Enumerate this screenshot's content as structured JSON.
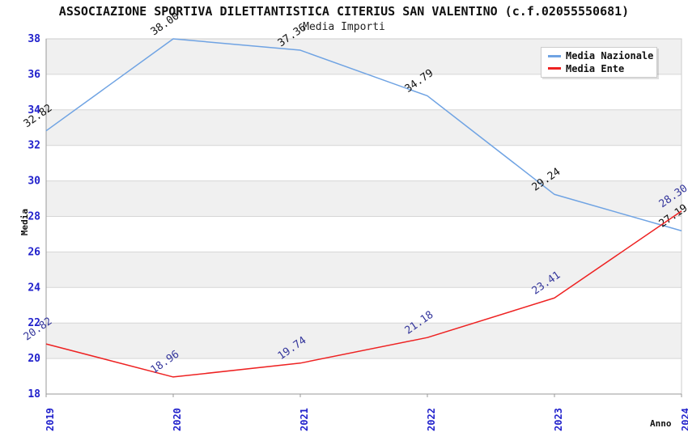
{
  "header": {
    "title": "ASSOCIAZIONE SPORTIVA DILETTANTISTICA CITERIUS SAN VALENTINO (c.f.02055550681)",
    "subtitle": "Media Importi"
  },
  "chart_data": {
    "type": "line",
    "title": "Media Importi",
    "xlabel": "Anno",
    "ylabel": "Media",
    "categories": [
      2019,
      2020,
      2021,
      2022,
      2023,
      2024
    ],
    "ylim": [
      18,
      38
    ],
    "ytick_step": 2,
    "grid": "horizontal",
    "legend_position": "top-right",
    "series": [
      {
        "name": "Media Nazionale",
        "color": "#6FA3E3",
        "label_color": "#111111",
        "values": [
          32.82,
          38.0,
          37.36,
          34.79,
          29.24,
          27.19
        ]
      },
      {
        "name": "Media Ente",
        "color": "#EE2222",
        "label_color": "#33359B",
        "values": [
          20.82,
          18.96,
          19.74,
          21.18,
          23.41,
          28.3
        ]
      }
    ]
  },
  "colors": {
    "tick_label": "#2222CC",
    "band": "#F0F0F0",
    "grid": "#D6D6D6",
    "plot_border": "#CCCCCC",
    "axis_line": "#999999",
    "background": "#FFFFFF"
  }
}
